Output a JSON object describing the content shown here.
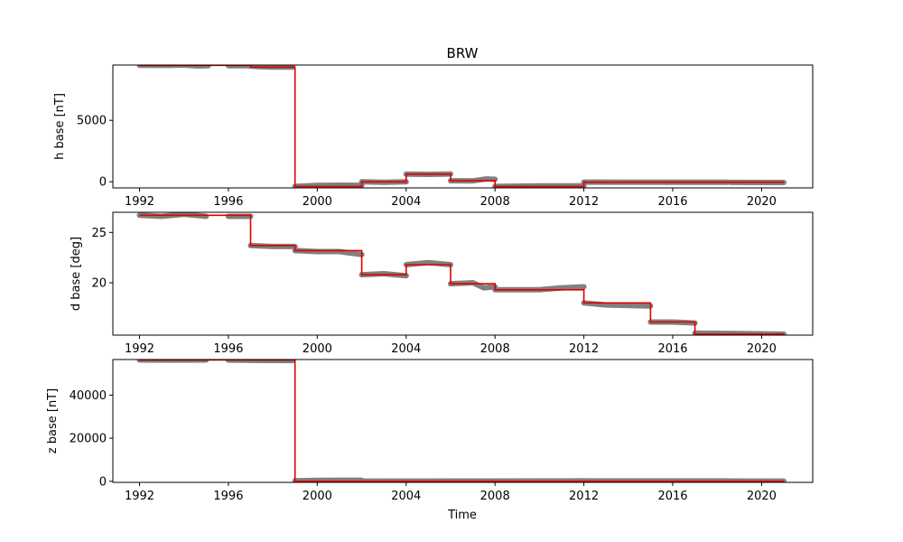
{
  "chart_data": [
    {
      "type": "line",
      "title": "BRW",
      "ylabel": "h base [nT]",
      "xlabel": "",
      "xlim": [
        1990.8,
        2022.3
      ],
      "ylim": [
        -500,
        9500
      ],
      "xticks": [
        1992,
        1996,
        2000,
        2004,
        2008,
        2012,
        2016,
        2020
      ],
      "yticks": [
        0,
        5000
      ],
      "points_color": "#808080",
      "line_color": "#e00000",
      "observed_segments": [
        [
          [
            1992.0,
            9480
          ],
          [
            1993.3,
            9470
          ],
          [
            1994.0,
            9500
          ],
          [
            1994.6,
            9430
          ],
          [
            1995.1,
            9450
          ]
        ],
        [
          [
            1996.0,
            9450
          ],
          [
            1996.8,
            9440
          ],
          [
            1997.3,
            9380
          ],
          [
            1998.0,
            9330
          ],
          [
            1998.9,
            9330
          ]
        ],
        [
          [
            1999.0,
            -380
          ],
          [
            2000.0,
            -300
          ],
          [
            2001.0,
            -280
          ],
          [
            2002.0,
            -300
          ]
        ],
        [
          [
            2002.0,
            -10
          ],
          [
            2003.0,
            -40
          ],
          [
            2004.0,
            -10
          ]
        ],
        [
          [
            2004.0,
            620
          ],
          [
            2005.0,
            600
          ],
          [
            2006.0,
            630
          ]
        ],
        [
          [
            2006.0,
            80
          ],
          [
            2007.0,
            70
          ],
          [
            2007.6,
            230
          ],
          [
            2008.0,
            200
          ]
        ],
        [
          [
            2008.0,
            -380
          ],
          [
            2010.0,
            -330
          ],
          [
            2012.0,
            -340
          ]
        ],
        [
          [
            2012.0,
            -30
          ],
          [
            2016.0,
            -40
          ],
          [
            2018.5,
            -40
          ]
        ],
        [
          [
            2018.6,
            -50
          ],
          [
            2020.0,
            -60
          ],
          [
            2021.0,
            -60
          ]
        ]
      ],
      "baseline_steps": [
        [
          1992.0,
          9480
        ],
        [
          1997.0,
          9330
        ],
        [
          1999.0,
          -380
        ],
        [
          2002.0,
          -10
        ],
        [
          2004.0,
          620
        ],
        [
          2006.0,
          80
        ],
        [
          2008.0,
          -380
        ],
        [
          2012.0,
          -40
        ],
        [
          2021.0,
          -40
        ]
      ]
    },
    {
      "type": "line",
      "title": "",
      "ylabel": "d base [deg]",
      "xlabel": "",
      "xlim": [
        1990.8,
        2022.3
      ],
      "ylim": [
        14.8,
        27.0
      ],
      "xticks": [
        1992,
        1996,
        2000,
        2004,
        2008,
        2012,
        2016,
        2020
      ],
      "yticks": [
        20,
        25
      ],
      "points_color": "#808080",
      "line_color": "#e00000",
      "observed_segments": [
        [
          [
            1992.0,
            26.7
          ],
          [
            1993.0,
            26.6
          ],
          [
            1994.0,
            26.8
          ],
          [
            1995.0,
            26.6
          ]
        ],
        [
          [
            1996.0,
            26.6
          ],
          [
            1997.0,
            26.6
          ]
        ],
        [
          [
            1997.0,
            23.7
          ],
          [
            1998.0,
            23.6
          ],
          [
            1999.0,
            23.6
          ]
        ],
        [
          [
            1999.0,
            23.2
          ],
          [
            2000.0,
            23.1
          ],
          [
            2001.0,
            23.1
          ],
          [
            2002.0,
            22.8
          ]
        ],
        [
          [
            2002.0,
            20.8
          ],
          [
            2003.0,
            20.9
          ],
          [
            2004.0,
            20.7
          ]
        ],
        [
          [
            2004.0,
            21.8
          ],
          [
            2005.0,
            22.0
          ],
          [
            2006.0,
            21.8
          ]
        ],
        [
          [
            2006.0,
            19.9
          ],
          [
            2007.0,
            20.0
          ],
          [
            2007.5,
            19.5
          ],
          [
            2008.0,
            19.6
          ]
        ],
        [
          [
            2008.0,
            19.3
          ],
          [
            2010.0,
            19.3
          ],
          [
            2011.0,
            19.5
          ],
          [
            2012.0,
            19.6
          ]
        ],
        [
          [
            2012.0,
            18.0
          ],
          [
            2013.0,
            17.8
          ],
          [
            2015.0,
            17.7
          ]
        ],
        [
          [
            2015.0,
            16.1
          ],
          [
            2016.0,
            16.1
          ],
          [
            2017.0,
            16.0
          ]
        ],
        [
          [
            2017.0,
            15.0
          ],
          [
            2019.0,
            14.95
          ],
          [
            2021.0,
            14.9
          ]
        ]
      ],
      "baseline_steps": [
        [
          1992.0,
          26.7
        ],
        [
          1997.0,
          23.7
        ],
        [
          1999.0,
          23.2
        ],
        [
          2002.0,
          20.8
        ],
        [
          2004.0,
          21.8
        ],
        [
          2006.0,
          19.9
        ],
        [
          2008.0,
          19.3
        ],
        [
          2012.0,
          18.0
        ],
        [
          2015.0,
          16.1
        ],
        [
          2017.0,
          14.9
        ],
        [
          2021.0,
          14.9
        ]
      ]
    },
    {
      "type": "line",
      "title": "",
      "ylabel": "z base [nT]",
      "xlabel": "Time",
      "xlim": [
        1990.8,
        2022.3
      ],
      "ylim": [
        -500,
        56500
      ],
      "xticks": [
        1992,
        1996,
        2000,
        2004,
        2008,
        2012,
        2016,
        2020
      ],
      "yticks": [
        0,
        20000,
        40000
      ],
      "points_color": "#808080",
      "line_color": "#e00000",
      "observed_segments": [
        [
          [
            1992.0,
            56300
          ],
          [
            1993.5,
            56250
          ],
          [
            1995.0,
            56300
          ]
        ],
        [
          [
            1996.0,
            56250
          ],
          [
            1997.5,
            56100
          ],
          [
            1998.9,
            56050
          ]
        ],
        [
          [
            1999.0,
            200
          ],
          [
            2000.0,
            450
          ],
          [
            2002.0,
            500
          ]
        ],
        [
          [
            2002.0,
            100
          ],
          [
            2008.0,
            120
          ],
          [
            2012.0,
            200
          ]
        ],
        [
          [
            2012.0,
            150
          ],
          [
            2016.0,
            150
          ],
          [
            2018.5,
            150
          ]
        ],
        [
          [
            2018.6,
            120
          ],
          [
            2021.0,
            100
          ]
        ]
      ],
      "baseline_steps": [
        [
          1992.0,
          56300
        ],
        [
          1999.0,
          0
        ],
        [
          2021.0,
          0
        ]
      ]
    }
  ]
}
